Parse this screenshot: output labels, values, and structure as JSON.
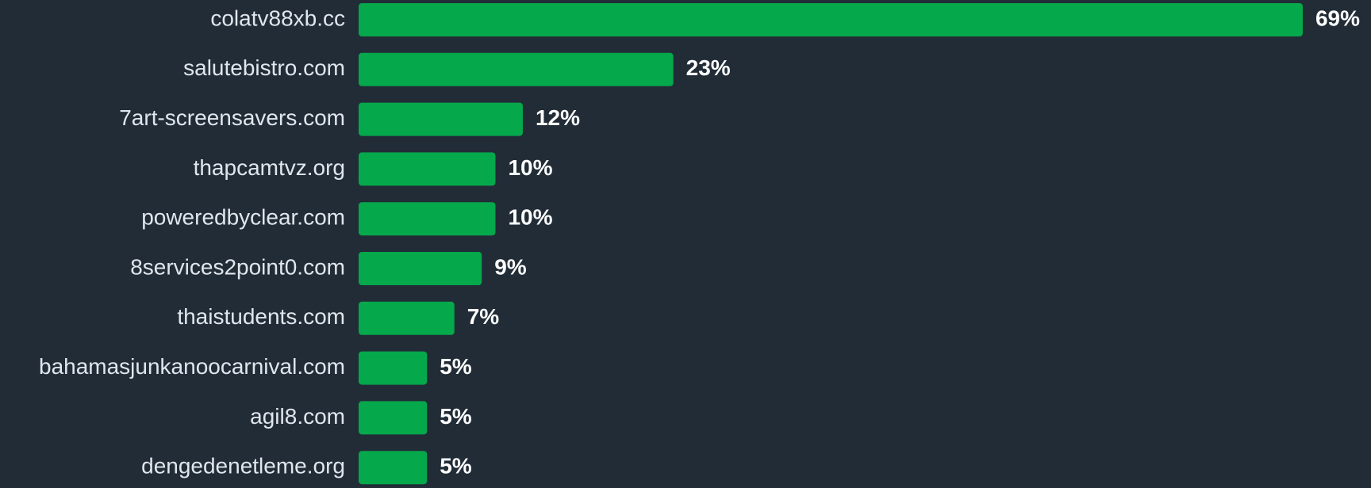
{
  "chart_data": {
    "type": "bar",
    "orientation": "horizontal",
    "categories": [
      "colatv88xb.cc",
      "salutebistro.com",
      "7art-screensavers.com",
      "thapcamtvz.org",
      "poweredbyclear.com",
      "8services2point0.com",
      "thaistudents.com",
      "bahamasjunkanoocarnival.com",
      "agil8.com",
      "dengedenetleme.org"
    ],
    "values": [
      69,
      23,
      12,
      10,
      10,
      9,
      7,
      5,
      5,
      5
    ],
    "value_labels": [
      "69%",
      "23%",
      "12%",
      "10%",
      "10%",
      "9%",
      "7%",
      "5%",
      "5%",
      "5%"
    ],
    "color": "#05a84b"
  }
}
